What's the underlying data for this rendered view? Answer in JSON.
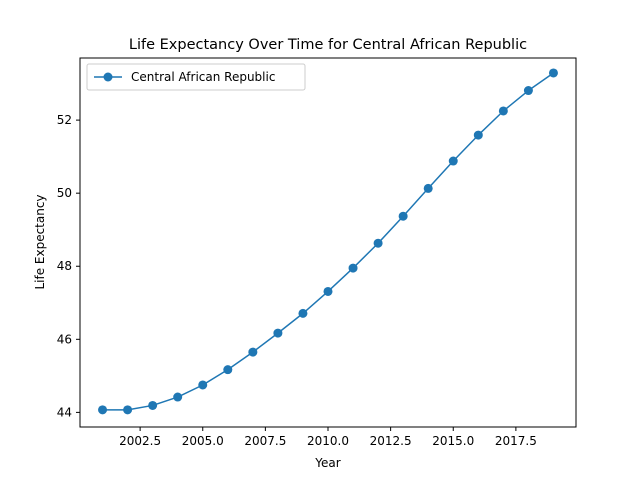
{
  "chart_data": {
    "type": "line",
    "title": "Life Expectancy Over Time for Central African Republic",
    "xlabel": "Year",
    "ylabel": "Life Expectancy",
    "xlim": [
      2000.1,
      2019.9
    ],
    "ylim": [
      43.6,
      53.7
    ],
    "x_ticks": [
      2002.5,
      2005.0,
      2007.5,
      2010.0,
      2012.5,
      2015.0,
      2017.5
    ],
    "x_tick_labels": [
      "2002.5",
      "2005.0",
      "2007.5",
      "2010.0",
      "2012.5",
      "2015.0",
      "2017.5"
    ],
    "y_ticks": [
      44,
      46,
      48,
      50,
      52
    ],
    "y_tick_labels": [
      "44",
      "46",
      "48",
      "50",
      "52"
    ],
    "grid": false,
    "legend_position": "upper-left",
    "series": [
      {
        "name": "Central African Republic",
        "color": "#1f77b4",
        "marker": "circle",
        "x": [
          2001,
          2002,
          2003,
          2004,
          2005,
          2006,
          2007,
          2008,
          2009,
          2010,
          2011,
          2012,
          2013,
          2014,
          2015,
          2016,
          2017,
          2018,
          2019
        ],
        "y": [
          44.07,
          44.07,
          44.19,
          44.42,
          44.75,
          45.17,
          45.65,
          46.17,
          46.71,
          47.31,
          47.95,
          48.63,
          49.37,
          50.13,
          50.88,
          51.59,
          52.25,
          52.81,
          53.29
        ]
      }
    ]
  }
}
